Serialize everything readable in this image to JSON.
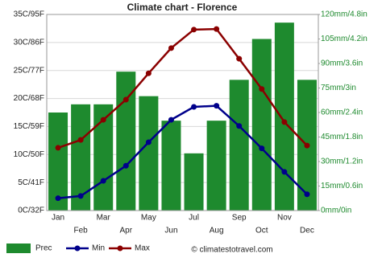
{
  "chart_data": {
    "type": "combo",
    "title": "Climate chart - Florence",
    "categories": [
      "Jan",
      "Feb",
      "Mar",
      "Apr",
      "May",
      "Jun",
      "Jul",
      "Aug",
      "Sep",
      "Oct",
      "Nov",
      "Dec"
    ],
    "series": [
      {
        "name": "Prec",
        "type": "bar",
        "axis": "y2",
        "color": "#1e8a2e",
        "values": [
          60,
          65,
          65,
          85,
          70,
          55,
          35,
          55,
          80,
          105,
          115,
          80
        ]
      },
      {
        "name": "Min",
        "type": "line",
        "color": "#00008b",
        "values": [
          2.2,
          2.6,
          5.3,
          8.0,
          12.2,
          16.2,
          18.5,
          18.7,
          15.1,
          11.1,
          6.9,
          2.9
        ]
      },
      {
        "name": "Max",
        "type": "line",
        "color": "#8b0000",
        "values": [
          11.2,
          12.6,
          16.2,
          19.8,
          24.5,
          29.0,
          32.3,
          32.4,
          27.1,
          21.7,
          15.8,
          11.6
        ]
      }
    ],
    "ylim": [
      0,
      35
    ],
    "yticks": [
      {
        "value": 0,
        "label": "0C/32F"
      },
      {
        "value": 5,
        "label": "5C/41F"
      },
      {
        "value": 10,
        "label": "10C/50F"
      },
      {
        "value": 15,
        "label": "15C/59F"
      },
      {
        "value": 20,
        "label": "20C/68F"
      },
      {
        "value": 25,
        "label": "25C/77F"
      },
      {
        "value": 30,
        "label": "30C/86F"
      },
      {
        "value": 35,
        "label": "35C/95F"
      }
    ],
    "y2lim": [
      0,
      120
    ],
    "y2ticks": [
      {
        "value": 0,
        "label": "0mm/0in"
      },
      {
        "value": 15,
        "label": "15mm/0.6in"
      },
      {
        "value": 30,
        "label": "30mm/1.2in"
      },
      {
        "value": 45,
        "label": "45mm/1.8in"
      },
      {
        "value": 60,
        "label": "60mm/2.4in"
      },
      {
        "value": 75,
        "label": "75mm/3in"
      },
      {
        "value": 90,
        "label": "90mm/3.6in"
      },
      {
        "value": 105,
        "label": "105mm/4.2in"
      },
      {
        "value": 120,
        "label": "120mm/4.8in"
      }
    ],
    "grid": true,
    "watermark": "© climatestotravel.com"
  }
}
